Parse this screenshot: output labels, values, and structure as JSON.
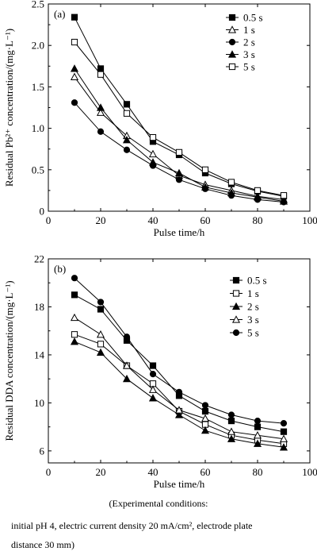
{
  "chart_data": [
    {
      "type": "line",
      "panel_label": "(a)",
      "xlabel": "Pulse time/h",
      "ylabel": "Residual Pb²⁺ concentration/(mg·L⁻¹)",
      "xlim": [
        0,
        100
      ],
      "ylim": [
        0,
        2.5
      ],
      "xticks": [
        0,
        20,
        40,
        60,
        80,
        100
      ],
      "yticks": [
        0,
        0.5,
        1.0,
        1.5,
        2.0,
        2.5
      ],
      "ytick_labels": [
        "0",
        "0.5",
        "1.0",
        "1.5",
        "2.0",
        "2.5"
      ],
      "grid": false,
      "legend_position": "top-right",
      "x": [
        10,
        20,
        30,
        40,
        50,
        60,
        70,
        80,
        90
      ],
      "series": [
        {
          "name": "0.5 s",
          "marker": "filled-square",
          "values": [
            2.34,
            1.72,
            1.29,
            0.84,
            0.68,
            0.46,
            0.33,
            0.24,
            0.18
          ]
        },
        {
          "name": "1 s",
          "marker": "open-triangle",
          "values": [
            1.62,
            1.19,
            0.91,
            0.69,
            0.43,
            0.32,
            0.25,
            0.18,
            0.14
          ]
        },
        {
          "name": "2 s",
          "marker": "filled-circle",
          "values": [
            1.31,
            0.96,
            0.74,
            0.55,
            0.38,
            0.27,
            0.19,
            0.14,
            0.11
          ]
        },
        {
          "name": "3 s",
          "marker": "filled-triangle",
          "values": [
            1.72,
            1.25,
            0.86,
            0.59,
            0.46,
            0.29,
            0.22,
            0.17,
            0.12
          ]
        },
        {
          "name": "5 s",
          "marker": "open-square",
          "values": [
            2.04,
            1.65,
            1.18,
            0.89,
            0.71,
            0.5,
            0.35,
            0.25,
            0.19
          ]
        }
      ]
    },
    {
      "type": "line",
      "panel_label": "(b)",
      "xlabel": "Pulse time/h",
      "ylabel": "Residual DDA concentration/(mg·L⁻¹)",
      "xlim": [
        0,
        100
      ],
      "ylim": [
        5,
        22
      ],
      "xticks": [
        0,
        20,
        40,
        60,
        80,
        100
      ],
      "yticks": [
        6,
        10,
        14,
        18,
        22
      ],
      "ytick_labels": [
        "6",
        "10",
        "14",
        "18",
        "22"
      ],
      "grid": false,
      "legend_position": "top-right",
      "x": [
        10,
        20,
        30,
        40,
        50,
        60,
        70,
        80,
        90
      ],
      "series": [
        {
          "name": "0.5 s",
          "marker": "filled-square",
          "values": [
            19.0,
            17.8,
            15.2,
            13.1,
            10.6,
            9.3,
            8.5,
            8.0,
            7.6
          ]
        },
        {
          "name": "1 s",
          "marker": "open-square",
          "values": [
            15.7,
            14.9,
            13.1,
            11.6,
            9.3,
            8.2,
            7.3,
            6.9,
            6.6
          ]
        },
        {
          "name": "2 s",
          "marker": "filled-triangle",
          "values": [
            15.1,
            14.2,
            12.0,
            10.4,
            9.0,
            7.7,
            7.0,
            6.6,
            6.3
          ]
        },
        {
          "name": "3 s",
          "marker": "open-triangle",
          "values": [
            17.1,
            15.7,
            13.1,
            11.1,
            9.4,
            8.7,
            7.6,
            7.3,
            7.0
          ]
        },
        {
          "name": "5 s",
          "marker": "filled-circle",
          "values": [
            20.4,
            18.4,
            15.5,
            12.4,
            10.9,
            9.8,
            9.0,
            8.5,
            8.3
          ]
        }
      ]
    }
  ],
  "caption": {
    "line1": "(Experimental  conditions:",
    "line2": "initial pH 4, electric current density 20 mA/cm², electrode plate",
    "line3": "distance 30 mm)"
  }
}
